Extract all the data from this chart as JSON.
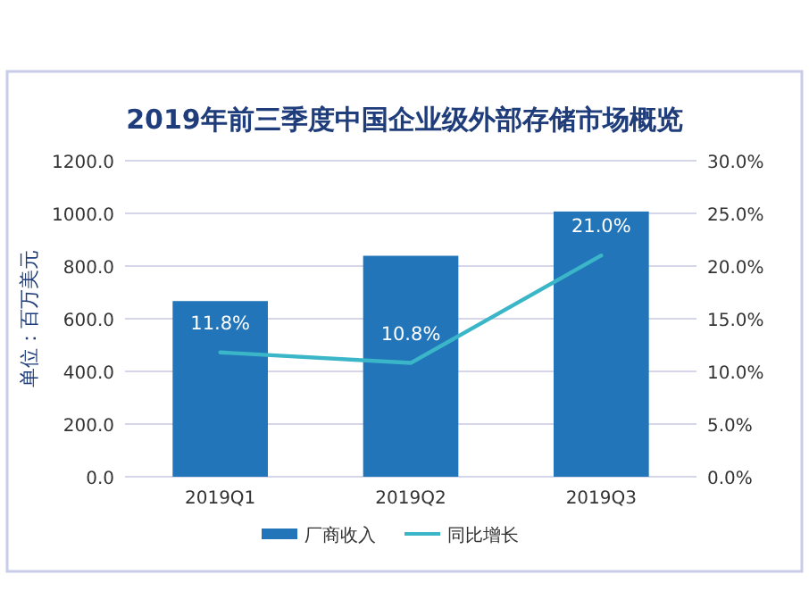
{
  "chart_data": {
    "type": "bar",
    "title": "2019年前三季度中国企业级外部存储市场概览",
    "ylabel": "单位：百万美元",
    "categories": [
      "2019Q1",
      "2019Q2",
      "2019Q3"
    ],
    "series": [
      {
        "name": "厂商收入",
        "color": "#2175b8",
        "values": [
          667,
          839,
          1007
        ]
      },
      {
        "name": "同比增长",
        "type": "line",
        "axis": "y2",
        "color": "#3ab6c8",
        "values": [
          11.8,
          10.8,
          21.0
        ],
        "value_labels": [
          "11.8%",
          "10.8%",
          "21.0%"
        ]
      }
    ],
    "ylim": [
      0,
      1200
    ],
    "yticks": [
      {
        "value": 0,
        "label": "0.0"
      },
      {
        "value": 200,
        "label": "200.0"
      },
      {
        "value": 400,
        "label": "400.0"
      },
      {
        "value": 600,
        "label": "600.0"
      },
      {
        "value": 800,
        "label": "800.0"
      },
      {
        "value": 1000,
        "label": "1000.0"
      },
      {
        "value": 1200,
        "label": "1200.0"
      }
    ],
    "y2lim": [
      0,
      30
    ],
    "y2ticks": [
      {
        "value": 0,
        "label": "0.0%"
      },
      {
        "value": 5,
        "label": "5.0%"
      },
      {
        "value": 10,
        "label": "10.0%"
      },
      {
        "value": 15,
        "label": "15.0%"
      },
      {
        "value": 20,
        "label": "20.0%"
      },
      {
        "value": 25,
        "label": "25.0%"
      },
      {
        "value": 30,
        "label": "30.0%"
      }
    ],
    "grid": "y",
    "legend": "bottom",
    "line_style": "solid",
    "marker": "none"
  }
}
